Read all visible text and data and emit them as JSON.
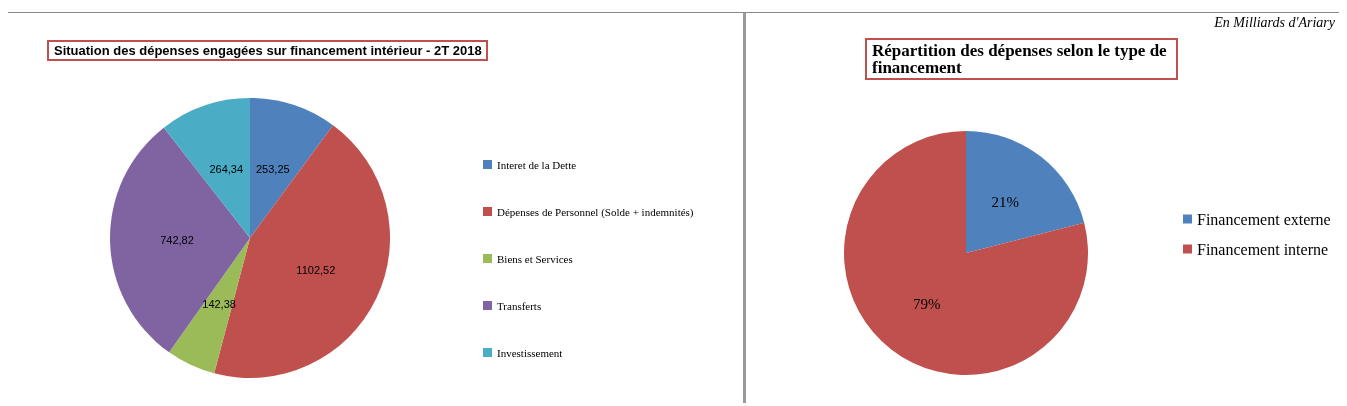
{
  "chart_data": [
    {
      "type": "pie",
      "title": "Situation des dépenses engagées sur financement intérieur - 2T 2018",
      "categories": [
        "Interet de la Dette",
        "Dépenses de Personnel (Solde + indemnités)",
        "Biens et Services",
        "Transferts",
        "Investissement"
      ],
      "values": [
        253.25,
        1102.52,
        142.38,
        742.82,
        264.34
      ],
      "value_labels": [
        "253,25",
        "1102,52",
        "142,38",
        "742,82",
        "264,34"
      ],
      "colors": [
        "#4f81bd",
        "#c0504d",
        "#9bbb59",
        "#8064a2",
        "#4bacc6"
      ],
      "legend": "right"
    },
    {
      "type": "pie",
      "title": "Répartition des dépenses selon le type de financement",
      "categories": [
        "Financement externe",
        "Financement interne"
      ],
      "values": [
        21,
        79
      ],
      "value_labels": [
        "21%",
        "79%"
      ],
      "colors": [
        "#4f81bd",
        "#c0504d"
      ],
      "legend": "right",
      "annotations": [
        "En Milliards d'Ariary"
      ]
    }
  ]
}
